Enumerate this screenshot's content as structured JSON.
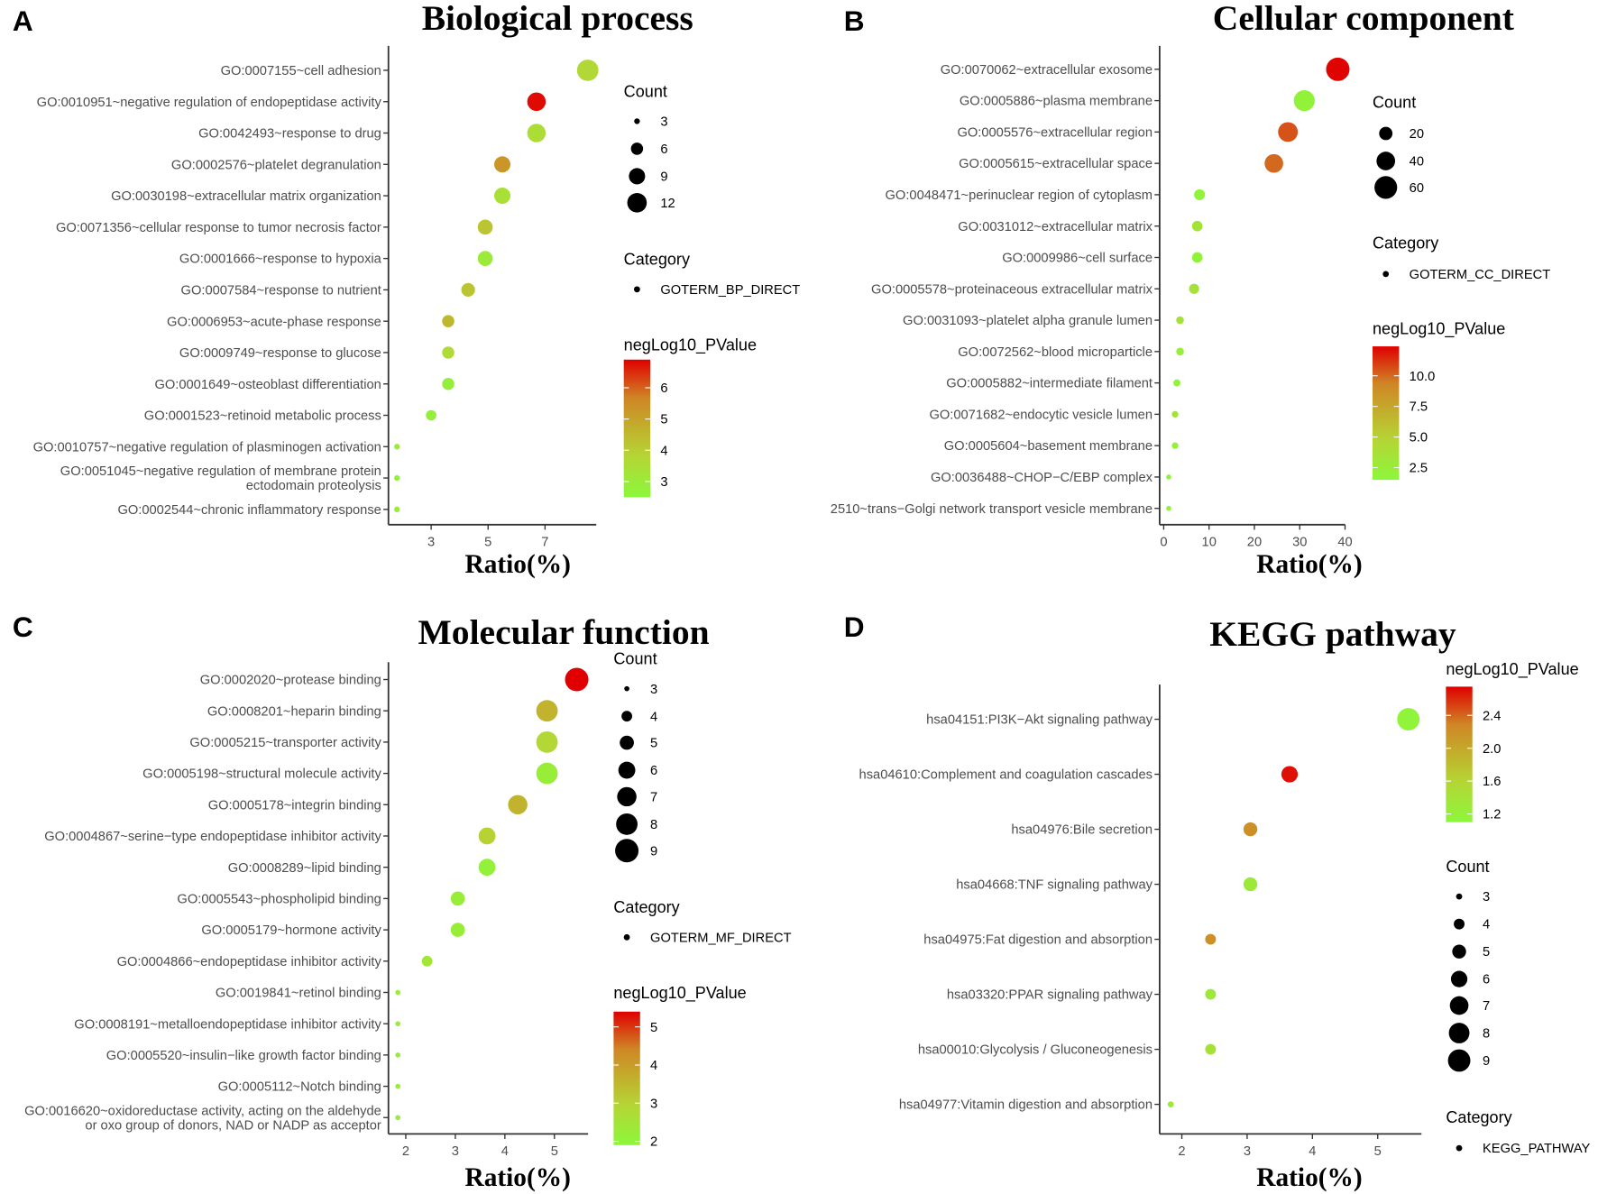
{
  "chart_data": [
    {
      "type": "scatter",
      "panel": "A",
      "title": "Biological process",
      "xlabel": "Ratio(%)",
      "xlim": [
        1.5,
        8.8
      ],
      "xticks": [
        3,
        5,
        7
      ],
      "grid": false,
      "legend_position": "right",
      "terms": [
        [
          "GO:0007155~cell adhesion"
        ],
        [
          "GO:0010951~negative regulation of endopeptidase activity"
        ],
        [
          "GO:0042493~response to drug"
        ],
        [
          "GO:0002576~platelet degranulation"
        ],
        [
          "GO:0030198~extracellular matrix organization"
        ],
        [
          "GO:0071356~cellular response to tumor necrosis factor"
        ],
        [
          "GO:0001666~response to hypoxia"
        ],
        [
          "GO:0007584~response to nutrient"
        ],
        [
          "GO:0006953~acute-phase response"
        ],
        [
          "GO:0009749~response to glucose"
        ],
        [
          "GO:0001649~osteoblast differentiation"
        ],
        [
          "GO:0001523~retinoid metabolic process"
        ],
        [
          "GO:0010757~negative regulation of plasminogen activation"
        ],
        [
          "GO:0051045~negative regulation of membrane protein",
          "ectodomain proteolysis"
        ],
        [
          "GO:0002544~chronic inflammatory response"
        ]
      ],
      "ratio": [
        8.5,
        6.7,
        6.7,
        5.5,
        5.5,
        4.9,
        4.9,
        4.3,
        3.6,
        3.6,
        3.6,
        3.0,
        1.8,
        1.8,
        1.8
      ],
      "count": [
        14,
        11,
        11,
        9,
        9,
        8,
        8,
        7,
        6,
        6,
        6,
        5,
        3,
        3,
        3
      ],
      "neglog10_pvalue": [
        3.7,
        6.8,
        3.5,
        5.3,
        3.4,
        4.2,
        3.0,
        4.2,
        4.5,
        3.6,
        2.8,
        2.8,
        3.0,
        2.8,
        3.0
      ],
      "size_legend": {
        "title": "Count",
        "values": [
          3,
          6,
          9,
          12
        ]
      },
      "category_legend": {
        "title": "Category",
        "label": "GOTERM_BP_DIRECT"
      },
      "color_legend": {
        "title": "negLog10_PValue",
        "range": [
          2.5,
          6.9
        ],
        "ticks": [
          3,
          4,
          5,
          6
        ]
      }
    },
    {
      "type": "scatter",
      "panel": "B",
      "title": "Cellular component",
      "xlabel": "Ratio(%)",
      "xlim": [
        -0.9,
        40
      ],
      "xticks": [
        0,
        10,
        20,
        30,
        40
      ],
      "grid": false,
      "legend_position": "right",
      "terms": [
        [
          "GO:0070062~extracellular exosome"
        ],
        [
          "GO:0005886~plasma membrane"
        ],
        [
          "GO:0005576~extracellular region"
        ],
        [
          "GO:0005615~extracellular space"
        ],
        [
          "GO:0048471~perinuclear region of cytoplasm"
        ],
        [
          "GO:0031012~extracellular matrix"
        ],
        [
          "GO:0009986~cell surface"
        ],
        [
          "GO:0005578~proteinaceous extracellular matrix"
        ],
        [
          "GO:0031093~platelet alpha granule lumen"
        ],
        [
          "GO:0072562~blood microparticle"
        ],
        [
          "GO:0005882~intermediate filament"
        ],
        [
          "GO:0071682~endocytic vesicle lumen"
        ],
        [
          "GO:0005604~basement membrane"
        ],
        [
          "GO:0036488~CHOP−C/EBP complex"
        ],
        [
          "2510~trans−Golgi network transport vesicle membrane"
        ]
      ],
      "ratio": [
        38.4,
        31.0,
        27.4,
        24.3,
        7.9,
        7.4,
        7.4,
        6.7,
        3.6,
        3.6,
        2.9,
        2.5,
        2.5,
        1.1,
        1.1
      ],
      "count": [
        64,
        51,
        45,
        40,
        13,
        12,
        12,
        11,
        6,
        6,
        5,
        4,
        4,
        2,
        2
      ],
      "neglog10_pvalue": [
        12.3,
        2.0,
        10.5,
        10.0,
        1.8,
        3.5,
        2.0,
        3.5,
        3.5,
        2.2,
        1.8,
        3.5,
        2.0,
        1.8,
        1.8
      ],
      "size_legend": {
        "title": "Count",
        "values": [
          20,
          40,
          60
        ]
      },
      "category_legend": {
        "title": "Category",
        "label": "GOTERM_CC_DIRECT"
      },
      "color_legend": {
        "title": "negLog10_PValue",
        "range": [
          1.5,
          12.4
        ],
        "ticks": [
          2.5,
          5.0,
          7.5,
          10.0
        ]
      }
    },
    {
      "type": "scatter",
      "panel": "C",
      "title": "Molecular function",
      "xlabel": "Ratio(%)",
      "xlim": [
        1.65,
        5.68
      ],
      "xticks": [
        2,
        3,
        4,
        5
      ],
      "grid": false,
      "legend_position": "right",
      "terms": [
        [
          "GO:0002020~protease binding"
        ],
        [
          "GO:0008201~heparin binding"
        ],
        [
          "GO:0005215~transporter activity"
        ],
        [
          "GO:0005198~structural molecule activity"
        ],
        [
          "GO:0005178~integrin binding"
        ],
        [
          "GO:0004867~serine−type endopeptidase inhibitor activity"
        ],
        [
          "GO:0008289~lipid binding"
        ],
        [
          "GO:0005543~phospholipid binding"
        ],
        [
          "GO:0005179~hormone activity"
        ],
        [
          "GO:0004866~endopeptidase inhibitor activity"
        ],
        [
          "GO:0019841~retinol binding"
        ],
        [
          "GO:0008191~metalloendopeptidase inhibitor activity"
        ],
        [
          "GO:0005520~insulin−like growth factor binding"
        ],
        [
          "GO:0005112~Notch binding"
        ],
        [
          "GO:0016620~oxidoreductase activity, acting on the aldehyde",
          "or oxo group of donors, NAD or NADP as acceptor"
        ]
      ],
      "ratio": [
        5.45,
        4.85,
        4.85,
        4.85,
        4.26,
        3.64,
        3.64,
        3.05,
        3.05,
        2.43,
        1.84,
        1.84,
        1.84,
        1.84,
        1.84
      ],
      "count": [
        9,
        8,
        8,
        8,
        7,
        6,
        6,
        5,
        5,
        4,
        3,
        3,
        3,
        3,
        3
      ],
      "neglog10_pvalue": [
        5.4,
        3.6,
        2.9,
        2.2,
        3.6,
        3.0,
        2.1,
        2.2,
        2.2,
        2.4,
        2.2,
        2.2,
        2.2,
        2.2,
        2.2
      ],
      "size_legend": {
        "title": "Count",
        "values": [
          3,
          4,
          5,
          6,
          7,
          8,
          9
        ]
      },
      "category_legend": {
        "title": "Category",
        "label": "GOTERM_MF_DIRECT"
      },
      "color_legend": {
        "title": "negLog10_PValue",
        "range": [
          1.9,
          5.4
        ],
        "ticks": [
          2,
          3,
          4,
          5
        ]
      }
    },
    {
      "type": "scatter",
      "panel": "D",
      "title": "KEGG pathway",
      "xlabel": "Ratio(%)",
      "xlim": [
        1.66,
        5.67
      ],
      "xticks": [
        2,
        3,
        4,
        5
      ],
      "grid": false,
      "legend_position": "right",
      "terms": [
        [
          "hsa04151:PI3K−Akt signaling pathway"
        ],
        [
          "hsa04610:Complement and coagulation cascades"
        ],
        [
          "hsa04976:Bile secretion"
        ],
        [
          "hsa04668:TNF signaling pathway"
        ],
        [
          "hsa04975:Fat digestion and absorption"
        ],
        [
          "hsa03320:PPAR signaling pathway"
        ],
        [
          "hsa00010:Glycolysis / Gluconeogenesis"
        ],
        [
          "hsa04977:Vitamin digestion and absorption"
        ]
      ],
      "ratio": [
        5.47,
        3.65,
        3.05,
        3.05,
        2.44,
        2.44,
        2.44,
        1.83
      ],
      "count": [
        9,
        6,
        5,
        5,
        4,
        4,
        4,
        3
      ],
      "neglog10_pvalue": [
        1.15,
        2.7,
        2.2,
        1.3,
        2.2,
        1.3,
        1.4,
        1.3
      ],
      "size_legend": {
        "title": "Count",
        "values": [
          3,
          4,
          5,
          6,
          7,
          8,
          9
        ]
      },
      "category_legend": {
        "title": "Category",
        "label": "KEGG_PATHWAY"
      },
      "color_legend": {
        "title": "negLog10_PValue",
        "range": [
          1.1,
          2.75
        ],
        "ticks": [
          1.2,
          1.6,
          2.0,
          2.4
        ]
      }
    }
  ],
  "colors": {
    "low": "#8cf73b",
    "mid": "#c2b02c",
    "high": "#e00000",
    "axis": "#333333",
    "text": "#4d4d4d"
  }
}
